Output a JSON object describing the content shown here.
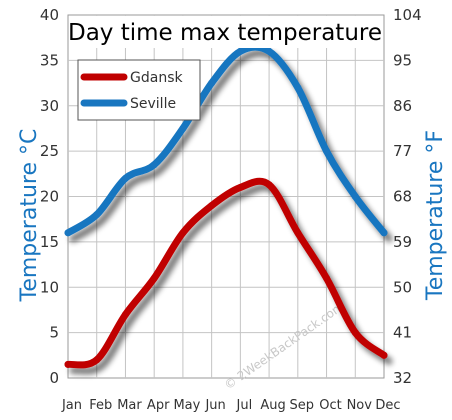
{
  "chart_data": {
    "type": "line",
    "title": "Day time max temperature",
    "categories": [
      "Jan",
      "Feb",
      "Mar",
      "Apr",
      "May",
      "Jun",
      "Jul",
      "Aug",
      "Sep",
      "Oct",
      "Nov",
      "Dec"
    ],
    "series": [
      {
        "name": "Gdansk",
        "color": "#c00000",
        "values": [
          1.5,
          2,
          7,
          11,
          16,
          19,
          21,
          21.3,
          16,
          11,
          5,
          2.5
        ]
      },
      {
        "name": "Seville",
        "color": "#1976c0",
        "values": [
          16,
          18,
          22,
          23.5,
          27.5,
          32.5,
          36,
          36,
          32,
          25,
          20,
          16
        ]
      }
    ],
    "ylabel_left": "Temperature °C",
    "ylabel_right": "Temperature °F",
    "ylim": [
      0,
      40
    ],
    "yticks_left": [
      "0",
      "5",
      "10",
      "15",
      "20",
      "25",
      "30",
      "35",
      "40"
    ],
    "yticks_right": [
      "32",
      "41",
      "50",
      "59",
      "68",
      "77",
      "86",
      "95",
      "104"
    ],
    "grid": true,
    "legend_position": "top-left",
    "watermark": "© 2WeekBackPack.com"
  }
}
